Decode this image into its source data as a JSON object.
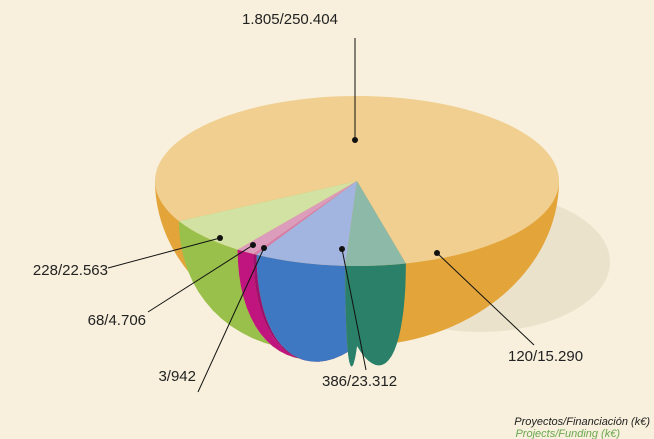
{
  "chart_data": {
    "type": "pie3d",
    "values": [
      250404,
      22563,
      4706,
      942,
      23312,
      15290
    ],
    "counts": [
      1805,
      228,
      68,
      3,
      386,
      120
    ],
    "value_labels": [
      "1.805/250.404",
      "228/22.563",
      "68/4.706",
      "3/942",
      "386/23.312",
      "120/15.290"
    ],
    "colors": [
      "#f0cf90",
      "#d2e2a2",
      "#dc9cbc",
      "#d67aaa",
      "#a2b4e0",
      "#8cb9a8"
    ],
    "side_colors": [
      "#e3a53a",
      "#98c04a",
      "#c0157e",
      "#a0106e",
      "#3f78c2",
      "#2a8068"
    ],
    "note": [
      "Proyectos/Financiación (k€)",
      "Projects/Funding (k€)"
    ]
  }
}
